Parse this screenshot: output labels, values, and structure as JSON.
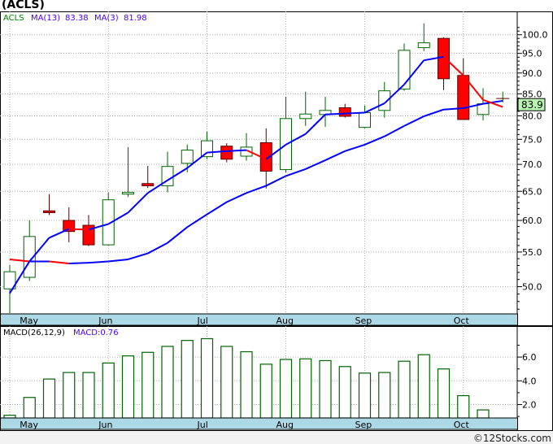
{
  "title": "(ACLS)",
  "footer": "©12Stocks.com",
  "colors": {
    "up": "#006400",
    "down": "#ff0000",
    "ma_fast": "#0000ff",
    "ma_slow": "#0000ff",
    "ma_decline": "#ff0000",
    "date_band": "#add8e6",
    "price_tag": "#b8f5b0",
    "legend_blue": "#4b00ff"
  },
  "chart_data": [
    {
      "type": "candlestick",
      "title": "(ACLS)",
      "legend": {
        "symbol": "ACLS",
        "ma13_label": "MA(13)",
        "ma13_value": "83.38",
        "ma3_label": "MA(3)",
        "ma3_value": "81.98"
      },
      "scale": "log",
      "ylim": [
        45,
        105
      ],
      "yticks": [
        "100.0",
        "95.0",
        "90.0",
        "85.0",
        "80.0",
        "75.0",
        "70.0",
        "65.0",
        "60.0",
        "55.0",
        "50.0"
      ],
      "last_price": "83.9",
      "month_labels": [
        "May",
        "Jun",
        "Jul",
        "Aug",
        "Sep",
        "Oct"
      ],
      "month_index": [
        1,
        5,
        10,
        14,
        18,
        23
      ],
      "gridline_index": [
        0,
        5,
        10,
        14,
        18,
        23
      ],
      "candles": [
        {
          "o": 49.7,
          "h": 53.1,
          "l": 46.5,
          "c": 52.1
        },
        {
          "o": 51.3,
          "h": 60.0,
          "l": 50.8,
          "c": 57.4
        },
        {
          "o": 61.6,
          "h": 64.5,
          "l": 60.9,
          "c": 61.3
        },
        {
          "o": 60.0,
          "h": 62.2,
          "l": 56.5,
          "c": 58.2
        },
        {
          "o": 59.2,
          "h": 60.9,
          "l": 55.9,
          "c": 56.1
        },
        {
          "o": 56.1,
          "h": 64.8,
          "l": 56.0,
          "c": 63.5
        },
        {
          "o": 64.5,
          "h": 73.4,
          "l": 64.0,
          "c": 64.8
        },
        {
          "o": 66.4,
          "h": 69.7,
          "l": 65.6,
          "c": 66.0
        },
        {
          "o": 66.0,
          "h": 72.5,
          "l": 64.8,
          "c": 69.6
        },
        {
          "o": 70.2,
          "h": 73.9,
          "l": 68.5,
          "c": 72.8
        },
        {
          "o": 71.5,
          "h": 76.6,
          "l": 71.0,
          "c": 74.7
        },
        {
          "o": 73.6,
          "h": 74.2,
          "l": 70.4,
          "c": 71.0
        },
        {
          "o": 71.6,
          "h": 76.3,
          "l": 70.7,
          "c": 73.4
        },
        {
          "o": 74.3,
          "h": 77.3,
          "l": 65.5,
          "c": 68.7
        },
        {
          "o": 69.0,
          "h": 84.3,
          "l": 68.5,
          "c": 79.4
        },
        {
          "o": 79.4,
          "h": 85.5,
          "l": 77.8,
          "c": 80.4
        },
        {
          "o": 80.3,
          "h": 84.3,
          "l": 77.6,
          "c": 81.2
        },
        {
          "o": 81.8,
          "h": 82.7,
          "l": 79.6,
          "c": 79.9
        },
        {
          "o": 77.5,
          "h": 82.3,
          "l": 77.3,
          "c": 80.7
        },
        {
          "o": 81.2,
          "h": 87.8,
          "l": 79.6,
          "c": 85.7
        },
        {
          "o": 86.1,
          "h": 97.6,
          "l": 85.7,
          "c": 95.8
        },
        {
          "o": 96.5,
          "h": 103.2,
          "l": 95.6,
          "c": 97.8
        },
        {
          "o": 99.0,
          "h": 99.3,
          "l": 85.9,
          "c": 88.6
        },
        {
          "o": 89.4,
          "h": 93.7,
          "l": 79.2,
          "c": 79.2
        },
        {
          "o": 80.3,
          "h": 86.3,
          "l": 79.0,
          "c": 82.7
        },
        {
          "o": 83.9,
          "h": 85.5,
          "l": 83.0,
          "c": 83.9
        }
      ],
      "ma3": [
        49.1,
        53.6,
        57.2,
        58.6,
        58.5,
        59.4,
        61.3,
        64.7,
        67.0,
        69.3,
        72.3,
        72.6,
        72.8,
        71.0,
        73.9,
        76.1,
        80.3,
        80.5,
        80.7,
        82.8,
        87.2,
        93.2,
        94.1,
        89.4,
        83.6,
        81.98
      ],
      "ma13": [
        53.9,
        53.6,
        53.6,
        53.3,
        53.4,
        53.6,
        53.9,
        54.8,
        56.4,
        58.9,
        61.0,
        63.1,
        64.7,
        66.0,
        67.8,
        69.1,
        70.8,
        72.6,
        73.9,
        75.6,
        77.8,
        79.9,
        81.4,
        81.7,
        82.7,
        83.38
      ]
    },
    {
      "type": "bar",
      "title": "MACD(26,12,9)",
      "legend": {
        "label": "MACD(26,12,9)",
        "value_label": "MACD:0.76"
      },
      "ylim": [
        0.85,
        8.5
      ],
      "yticks": [
        "6.0",
        "4.0",
        "2.0"
      ],
      "ytick_values": [
        6,
        4,
        2
      ],
      "values": [
        1.1,
        2.6,
        4.15,
        4.7,
        4.7,
        5.5,
        6.1,
        6.4,
        6.9,
        7.4,
        7.55,
        6.9,
        6.45,
        5.4,
        5.8,
        5.85,
        5.7,
        5.2,
        4.65,
        4.7,
        5.65,
        6.2,
        5.0,
        2.75,
        1.55,
        0.76
      ],
      "month_labels": [
        "May",
        "Jun",
        "Jul",
        "Aug",
        "Sep",
        "Oct"
      ]
    }
  ]
}
